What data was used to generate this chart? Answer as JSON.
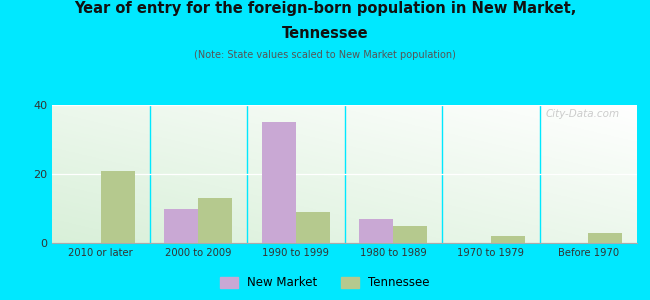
{
  "title_line1": "Year of entry for the foreign-born population in New Market,",
  "title_line2": "Tennessee",
  "subtitle": "(Note: State values scaled to New Market population)",
  "categories": [
    "2010 or later",
    "2000 to 2009",
    "1990 to 1999",
    "1980 to 1989",
    "1970 to 1979",
    "Before 1970"
  ],
  "new_market": [
    0,
    10,
    35,
    7,
    0,
    0
  ],
  "tennessee": [
    21,
    13,
    9,
    5,
    2,
    3
  ],
  "bar_color_nm": "#c9a8d4",
  "bar_color_tn": "#b5c98e",
  "background_outer": "#00e8ff",
  "ylim": [
    0,
    40
  ],
  "yticks": [
    0,
    20,
    40
  ],
  "bar_width": 0.35,
  "legend_labels": [
    "New Market",
    "Tennessee"
  ],
  "watermark": "City-Data.com"
}
